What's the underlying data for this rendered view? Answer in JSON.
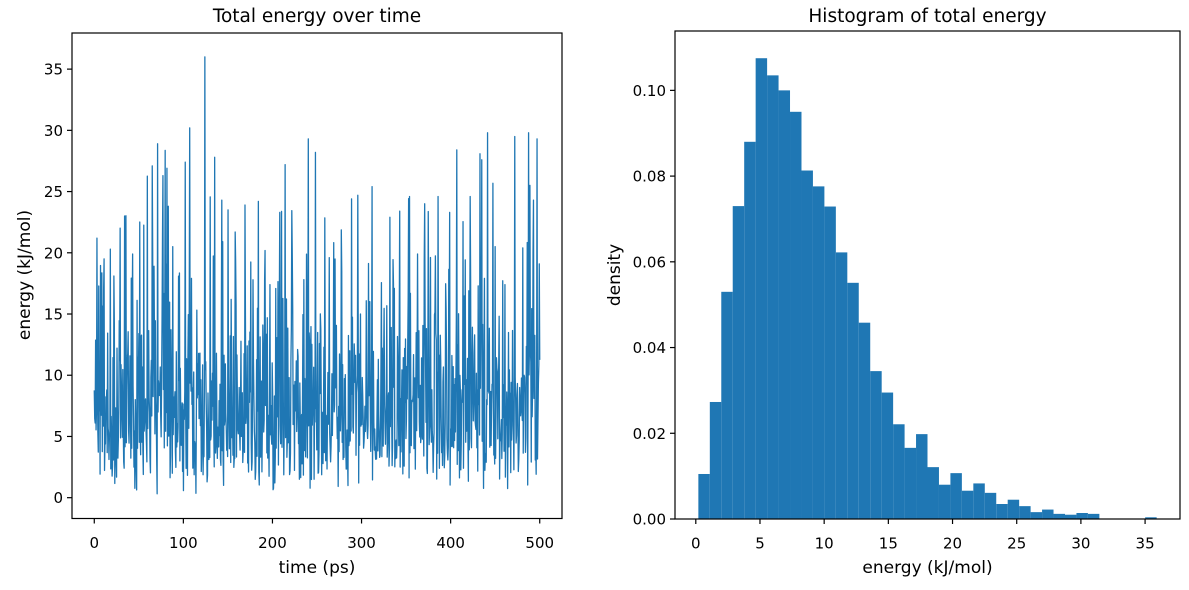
{
  "figure": {
    "background": "#ffffff",
    "accent_color": "#1f77b4",
    "text_color": "#000000"
  },
  "chart_data": [
    {
      "type": "line",
      "title": "Total energy over time",
      "xlabel": "time (ps)",
      "ylabel": "energy (kJ/mol)",
      "color": "#1f77b4",
      "grid": false,
      "legend": null,
      "x_range": [
        0,
        500
      ],
      "xlim": [
        -25,
        525
      ],
      "ylim": [
        -1.7,
        37.95
      ],
      "xticks": [
        0,
        100,
        200,
        300,
        400,
        500
      ],
      "xticklabels": [
        "0",
        "100",
        "200",
        "300",
        "400",
        "500"
      ],
      "yticks": [
        0,
        5,
        10,
        15,
        20,
        25,
        30,
        35
      ],
      "yticklabels": [
        "0",
        "5",
        "10",
        "15",
        "20",
        "25",
        "30",
        "35"
      ],
      "axes_rect": [
        72,
        33,
        490,
        485.5
      ],
      "n_points": 1000,
      "stats": {
        "min": 0.25,
        "max": 36.0,
        "mean": 8.3
      },
      "series_spec": {
        "seed": 987654321,
        "scale": 3.77,
        "k_frac": 0.2,
        "clip": [
          0.25,
          29.8
        ]
      },
      "peaks": [
        [
          3,
          21.2
        ],
        [
          11,
          19.5
        ],
        [
          18,
          20.3
        ],
        [
          34,
          23.0
        ],
        [
          43,
          19.9
        ],
        [
          65,
          27.1
        ],
        [
          71,
          28.9
        ],
        [
          77,
          26.3
        ],
        [
          83,
          23.8
        ],
        [
          88,
          20.5
        ],
        [
          102,
          27.4
        ],
        [
          107,
          30.2
        ],
        [
          124,
          36.0
        ],
        [
          135,
          27.8
        ],
        [
          143,
          24.3
        ],
        [
          150,
          23.5
        ],
        [
          158,
          21.7
        ],
        [
          169,
          23.9
        ],
        [
          178,
          17.8
        ],
        [
          184,
          24.2
        ],
        [
          197,
          17.4
        ],
        [
          208,
          23.3
        ],
        [
          214,
          27.2
        ],
        [
          240,
          29.3
        ],
        [
          248,
          28.2
        ],
        [
          264,
          19.6
        ],
        [
          278,
          18.5
        ],
        [
          289,
          24.4
        ],
        [
          296,
          24.7
        ],
        [
          312,
          25.4
        ],
        [
          332,
          22.9
        ],
        [
          343,
          23.4
        ],
        [
          354,
          24.6
        ],
        [
          363,
          19.9
        ],
        [
          371,
          24.0
        ],
        [
          386,
          24.6
        ],
        [
          399,
          23.3
        ],
        [
          407,
          28.4
        ],
        [
          422,
          24.6
        ],
        [
          435,
          27.6
        ],
        [
          450,
          20.5
        ],
        [
          461,
          17.4
        ],
        [
          472,
          29.5
        ],
        [
          481,
          20.4
        ],
        [
          489,
          25.5
        ],
        [
          493,
          24.3
        ],
        [
          497,
          29.3
        ]
      ]
    },
    {
      "type": "histogram",
      "title": "Histogram of total energy",
      "xlabel": "energy (kJ/mol)",
      "ylabel": "density",
      "color": "#1f77b4",
      "grid": false,
      "legend": null,
      "bin_start": 0.2,
      "bin_width": 0.8925,
      "densities": [
        0.0105,
        0.0273,
        0.053,
        0.073,
        0.088,
        0.1075,
        0.1035,
        0.1,
        0.095,
        0.0813,
        0.0776,
        0.0729,
        0.0622,
        0.0551,
        0.0458,
        0.0345,
        0.0295,
        0.0221,
        0.0166,
        0.0198,
        0.0121,
        0.008,
        0.0107,
        0.0066,
        0.0083,
        0.0061,
        0.0035,
        0.0045,
        0.003,
        0.0016,
        0.0022,
        0.0012,
        0.001,
        0.0014,
        0.0012,
        0.0,
        0.0,
        0.0,
        0.0,
        0.0004
      ],
      "xlim": [
        -1.62,
        37.72
      ],
      "ylim": [
        0,
        0.11385
      ],
      "xticks": [
        0,
        5,
        10,
        15,
        20,
        25,
        30,
        35
      ],
      "xticklabels": [
        "0",
        "5",
        "10",
        "15",
        "20",
        "25",
        "30",
        "35"
      ],
      "yticks": [
        0,
        0.02,
        0.04,
        0.06,
        0.08,
        0.1
      ],
      "yticklabels": [
        "0.00",
        "0.02",
        "0.04",
        "0.06",
        "0.08",
        "0.10"
      ],
      "axes_rect": [
        675,
        31,
        505,
        488
      ]
    }
  ]
}
